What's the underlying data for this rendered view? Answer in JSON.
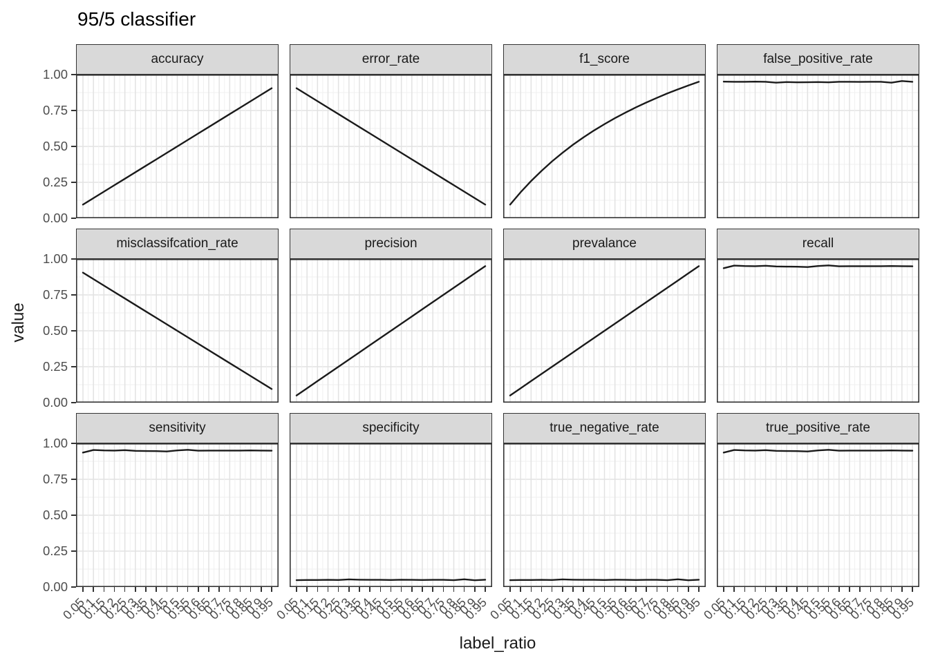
{
  "title": "95/5 classifier",
  "chart_data": {
    "type": "line",
    "title": "95/5 classifier",
    "xlabel": "label_ratio",
    "ylabel": "value",
    "layout": {
      "facet_rows": 3,
      "facet_cols": 4,
      "legend": "none",
      "grid": "major+minor"
    },
    "x": [
      0.05,
      0.1,
      0.15,
      0.2,
      0.25,
      0.3,
      0.35,
      0.4,
      0.45,
      0.5,
      0.55,
      0.6,
      0.65,
      0.7,
      0.75,
      0.8,
      0.85,
      0.9,
      0.95
    ],
    "x_tick_labels": [
      "0.05",
      "0.1",
      "0.15",
      "0.2",
      "0.25",
      "0.3",
      "0.35",
      "0.4",
      "0.45",
      "0.5",
      "0.55",
      "0.6",
      "0.65",
      "0.7",
      "0.75",
      "0.8",
      "0.85",
      "0.9",
      "0.95"
    ],
    "y_tick_labels": [
      "1.00",
      "0.75",
      "0.50",
      "0.25",
      "0.00"
    ],
    "y_tick_values": [
      1.0,
      0.75,
      0.5,
      0.25,
      0.0
    ],
    "ylim": [
      0,
      1
    ],
    "colors": {
      "line": "#1a1a1a",
      "strip_bg": "#d9d9d9",
      "panel_border": "#333333",
      "grid_major": "#e2e2e2",
      "grid_minor": "#efefef",
      "tick_label": "#4d4d4d"
    },
    "facets": [
      {
        "label": "accuracy",
        "values": [
          0.095,
          0.14,
          0.185,
          0.23,
          0.275,
          0.32,
          0.365,
          0.41,
          0.455,
          0.5,
          0.545,
          0.59,
          0.635,
          0.68,
          0.725,
          0.77,
          0.815,
          0.86,
          0.905
        ]
      },
      {
        "label": "error_rate",
        "values": [
          0.905,
          0.86,
          0.815,
          0.77,
          0.725,
          0.68,
          0.635,
          0.59,
          0.545,
          0.5,
          0.455,
          0.41,
          0.365,
          0.32,
          0.275,
          0.23,
          0.185,
          0.14,
          0.095
        ]
      },
      {
        "label": "f1_score",
        "values": [
          0.095,
          0.181,
          0.259,
          0.33,
          0.396,
          0.456,
          0.512,
          0.563,
          0.611,
          0.655,
          0.697,
          0.735,
          0.772,
          0.806,
          0.838,
          0.869,
          0.897,
          0.924,
          0.95
        ]
      },
      {
        "label": "false_positive_rate",
        "values": [
          0.951,
          0.95,
          0.95,
          0.951,
          0.95,
          0.944,
          0.948,
          0.946,
          0.947,
          0.948,
          0.946,
          0.95,
          0.95,
          0.949,
          0.95,
          0.95,
          0.944,
          0.955,
          0.95
        ]
      },
      {
        "label": "misclassifcation_rate",
        "values": [
          0.905,
          0.86,
          0.815,
          0.77,
          0.725,
          0.68,
          0.635,
          0.59,
          0.545,
          0.5,
          0.455,
          0.41,
          0.365,
          0.32,
          0.275,
          0.23,
          0.185,
          0.14,
          0.095
        ]
      },
      {
        "label": "precision",
        "values": [
          0.05,
          0.1,
          0.15,
          0.2,
          0.25,
          0.3,
          0.35,
          0.4,
          0.45,
          0.5,
          0.55,
          0.6,
          0.65,
          0.7,
          0.75,
          0.8,
          0.85,
          0.9,
          0.95
        ]
      },
      {
        "label": "prevalance",
        "values": [
          0.05,
          0.1,
          0.15,
          0.2,
          0.25,
          0.3,
          0.35,
          0.4,
          0.45,
          0.5,
          0.55,
          0.6,
          0.65,
          0.7,
          0.75,
          0.8,
          0.85,
          0.9,
          0.95
        ]
      },
      {
        "label": "recall",
        "values": [
          0.936,
          0.954,
          0.951,
          0.95,
          0.953,
          0.948,
          0.947,
          0.946,
          0.944,
          0.951,
          0.955,
          0.949,
          0.95,
          0.95,
          0.95,
          0.95,
          0.951,
          0.95,
          0.949
        ]
      },
      {
        "label": "sensitivity",
        "values": [
          0.936,
          0.954,
          0.951,
          0.95,
          0.953,
          0.948,
          0.947,
          0.946,
          0.944,
          0.951,
          0.955,
          0.949,
          0.95,
          0.95,
          0.95,
          0.95,
          0.951,
          0.95,
          0.949
        ]
      },
      {
        "label": "specificity",
        "values": [
          0.048,
          0.049,
          0.049,
          0.05,
          0.049,
          0.053,
          0.051,
          0.05,
          0.05,
          0.049,
          0.051,
          0.05,
          0.049,
          0.05,
          0.05,
          0.048,
          0.054,
          0.047,
          0.051
        ]
      },
      {
        "label": "true_negative_rate",
        "values": [
          0.048,
          0.049,
          0.049,
          0.05,
          0.049,
          0.053,
          0.051,
          0.05,
          0.05,
          0.049,
          0.051,
          0.05,
          0.049,
          0.05,
          0.05,
          0.048,
          0.054,
          0.047,
          0.051
        ]
      },
      {
        "label": "true_positive_rate",
        "values": [
          0.936,
          0.954,
          0.951,
          0.95,
          0.953,
          0.948,
          0.947,
          0.946,
          0.944,
          0.951,
          0.955,
          0.949,
          0.95,
          0.95,
          0.95,
          0.95,
          0.951,
          0.95,
          0.949
        ]
      }
    ]
  }
}
